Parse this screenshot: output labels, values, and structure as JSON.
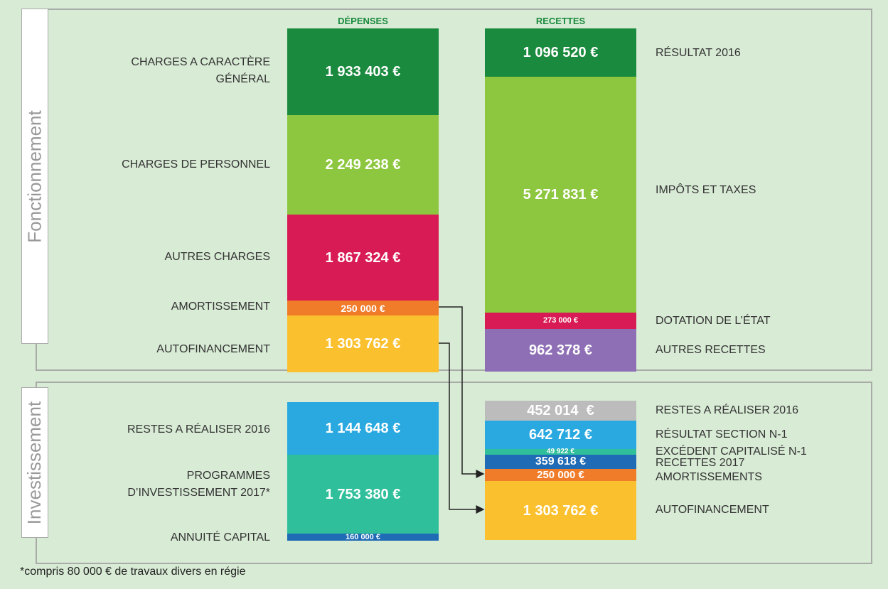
{
  "columns": {
    "left": "DÉPENSES",
    "right": "RECETTES"
  },
  "sections": [
    {
      "title": "Fonctionnement",
      "left": [
        {
          "label": [
            "CHARGES A CARACTÈRE",
            "GÉNÉRAL"
          ],
          "value": "1 933 403 €"
        },
        {
          "label": [
            "CHARGES DE PERSONNEL"
          ],
          "value": "2 249 238 €"
        },
        {
          "label": [
            "AUTRES CHARGES"
          ],
          "value": "1 867 324 €"
        },
        {
          "label": [
            "AMORTISSEMENT"
          ],
          "value": "250 000 €"
        },
        {
          "label": [
            "AUTOFINANCEMENT"
          ],
          "value": "1 303 762 €"
        }
      ],
      "right": [
        {
          "label": [
            "RÉSULTAT 2016"
          ],
          "value": "1 096 520 €"
        },
        {
          "label": [
            "IMPÔTS ET TAXES"
          ],
          "value": "5 271 831 €"
        },
        {
          "label": [
            "DOTATION DE L’ÉTAT"
          ],
          "value": "273 000 €"
        },
        {
          "label": [
            "AUTRES RECETTES"
          ],
          "value": "962 378 €"
        }
      ]
    },
    {
      "title": "Investissement",
      "left": [
        {
          "label": [
            "RESTES A RÉALISER 2016"
          ],
          "value": "1 144 648 €"
        },
        {
          "label": [
            "PROGRAMMES",
            "D’INVESTISSEMENT 2017*"
          ],
          "value": "1 753 380 €"
        },
        {
          "label": [
            "ANNUITÉ CAPITAL"
          ],
          "value": "160 000 €"
        }
      ],
      "right": [
        {
          "label": [
            "RESTES A RÉALISER 2016"
          ],
          "value": "452 014  €"
        },
        {
          "label": [
            "RÉSULTAT SECTION N-1"
          ],
          "value": "642 712 €"
        },
        {
          "label": [
            "EXCÉDENT CAPITALISÉ N-1"
          ],
          "value": "49 922 €"
        },
        {
          "label": [
            "RECETTES 2017"
          ],
          "value": "359 618 €"
        },
        {
          "label": [
            "AMORTISSEMENTS"
          ],
          "value": "250 000 €"
        },
        {
          "label": [
            "AUTOFINANCEMENT"
          ],
          "value": "1 303 762 €"
        }
      ]
    }
  ],
  "footnote": "*compris 80 000 € de travaux divers en régie"
}
